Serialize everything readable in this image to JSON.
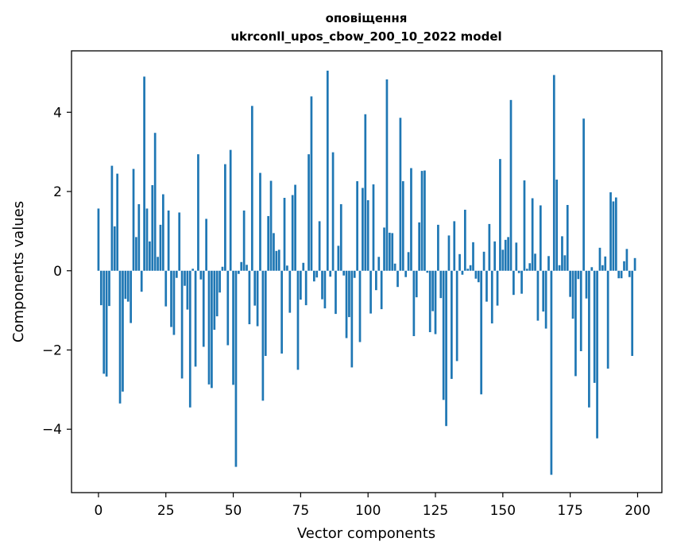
{
  "chart_data": {
    "type": "bar",
    "title_line1": "оповіщення",
    "title_line2": "ukrconll_upos_cbow_200_10_2022 model",
    "xlabel": "Vector components",
    "ylabel": "Components values",
    "xlim": [
      -10,
      209
    ],
    "ylim": [
      -5.6,
      5.55
    ],
    "xticks": [
      0,
      25,
      50,
      75,
      100,
      125,
      150,
      175,
      200
    ],
    "xtick_labels": [
      "0",
      "25",
      "50",
      "75",
      "100",
      "125",
      "150",
      "175",
      "200"
    ],
    "yticks": [
      -4,
      -2,
      0,
      2,
      4
    ],
    "ytick_labels": [
      "−4",
      "−2",
      "0",
      "2",
      "4"
    ],
    "bar_color": "#1f77b4",
    "grid": false,
    "x": [
      0,
      1,
      2,
      3,
      4,
      5,
      6,
      7,
      8,
      9,
      10,
      11,
      12,
      13,
      14,
      15,
      16,
      17,
      18,
      19,
      20,
      21,
      22,
      23,
      24,
      25,
      26,
      27,
      28,
      29,
      30,
      31,
      32,
      33,
      34,
      35,
      36,
      37,
      38,
      39,
      40,
      41,
      42,
      43,
      44,
      45,
      46,
      47,
      48,
      49,
      50,
      51,
      52,
      53,
      54,
      55,
      56,
      57,
      58,
      59,
      60,
      61,
      62,
      63,
      64,
      65,
      66,
      67,
      68,
      69,
      70,
      71,
      72,
      73,
      74,
      75,
      76,
      77,
      78,
      79,
      80,
      81,
      82,
      83,
      84,
      85,
      86,
      87,
      88,
      89,
      90,
      91,
      92,
      93,
      94,
      95,
      96,
      97,
      98,
      99,
      100,
      101,
      102,
      103,
      104,
      105,
      106,
      107,
      108,
      109,
      110,
      111,
      112,
      113,
      114,
      115,
      116,
      117,
      118,
      119,
      120,
      121,
      122,
      123,
      124,
      125,
      126,
      127,
      128,
      129,
      130,
      131,
      132,
      133,
      134,
      135,
      136,
      137,
      138,
      139,
      140,
      141,
      142,
      143,
      144,
      145,
      146,
      147,
      148,
      149,
      150,
      151,
      152,
      153,
      154,
      155,
      156,
      157,
      158,
      159,
      160,
      161,
      162,
      163,
      164,
      165,
      166,
      167,
      168,
      169,
      170,
      171,
      172,
      173,
      174,
      175,
      176,
      177,
      178,
      179,
      180,
      181,
      182,
      183,
      184,
      185,
      186,
      187,
      188,
      189,
      190,
      191,
      192,
      193,
      194,
      195,
      196,
      197,
      198,
      199
    ],
    "values": [
      1.57,
      -0.87,
      -2.6,
      -2.67,
      -0.89,
      2.65,
      1.12,
      2.45,
      -3.35,
      -3.05,
      -0.71,
      -0.78,
      -1.32,
      2.57,
      0.85,
      1.68,
      -0.53,
      4.9,
      1.57,
      0.74,
      2.16,
      3.48,
      0.35,
      1.16,
      1.93,
      -0.9,
      1.52,
      -1.42,
      -1.62,
      -0.18,
      1.47,
      -2.72,
      -0.38,
      -0.98,
      -3.45,
      0.05,
      -2.42,
      2.94,
      -0.22,
      -1.92,
      1.31,
      -2.87,
      -2.96,
      -1.49,
      -1.15,
      -0.55,
      0.1,
      2.69,
      -1.88,
      3.05,
      -2.88,
      -4.95,
      -0.08,
      0.22,
      1.52,
      0.15,
      -1.35,
      4.16,
      -0.88,
      -1.4,
      2.47,
      -3.28,
      -2.15,
      1.38,
      2.27,
      0.95,
      0.5,
      0.53,
      -2.09,
      1.84,
      0.13,
      -1.06,
      1.91,
      2.17,
      -2.5,
      -0.73,
      0.2,
      -0.87,
      2.94,
      4.4,
      -0.27,
      -0.17,
      1.25,
      -0.72,
      -0.95,
      5.05,
      -0.15,
      2.99,
      -1.09,
      0.63,
      1.68,
      -0.12,
      -1.7,
      -1.17,
      -2.44,
      -0.18,
      2.26,
      -1.8,
      2.09,
      3.95,
      1.78,
      -1.08,
      2.18,
      -0.49,
      0.35,
      -0.97,
      1.09,
      4.83,
      0.96,
      0.95,
      0.18,
      -0.41,
      3.86,
      2.26,
      -0.16,
      0.47,
      2.59,
      -1.65,
      -0.67,
      1.22,
      2.52,
      2.53,
      -0.05,
      -1.55,
      -1.02,
      -1.6,
      1.16,
      -0.69,
      -3.26,
      -3.92,
      0.89,
      -2.73,
      1.25,
      -2.28,
      0.42,
      -0.1,
      1.54,
      0.05,
      0.14,
      0.72,
      -0.2,
      -0.29,
      -3.12,
      0.48,
      -0.78,
      1.18,
      -1.33,
      0.74,
      -0.88,
      2.82,
      0.53,
      0.78,
      0.85,
      4.31,
      -0.61,
      0.71,
      -0.06,
      -0.58,
      2.28,
      0.05,
      0.19,
      1.83,
      0.43,
      -1.26,
      1.65,
      -1.03,
      -1.46,
      0.37,
      -5.15,
      4.94,
      2.3,
      0.14,
      0.87,
      0.39,
      1.66,
      -0.66,
      -1.21,
      -2.66,
      -0.21,
      -2.03,
      3.84,
      -0.7,
      -3.45,
      0.09,
      -2.83,
      -4.23,
      0.58,
      0.14,
      0.36,
      -2.47,
      1.98,
      1.75,
      1.85,
      -0.19,
      -0.19,
      0.24,
      0.55,
      -0.16,
      -2.15,
      0.32
    ]
  }
}
